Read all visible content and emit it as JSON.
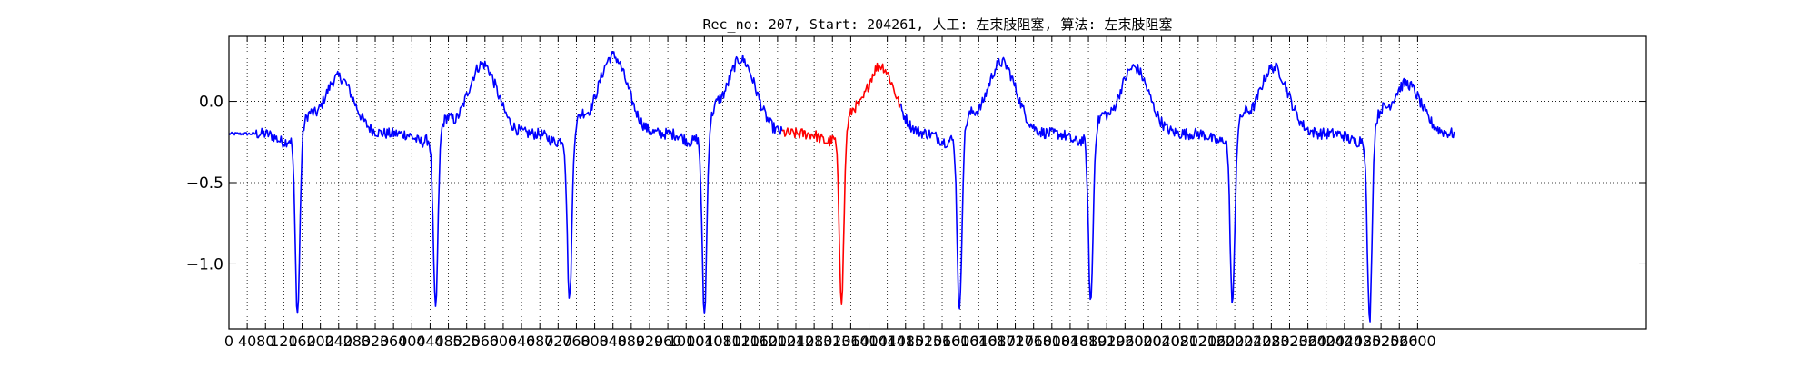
{
  "chart_data": {
    "type": "line",
    "title": "Rec_no: 207, Start: 204261, 人工: 左束肢阻塞, 算法: 左束肢阻塞",
    "xlabel": "",
    "ylabel": "",
    "xlim": [
      0,
      3100
    ],
    "ylim": [
      -1.4,
      0.4
    ],
    "grid": true,
    "x_ticks": [
      0,
      40,
      80,
      120,
      160,
      200,
      240,
      280,
      320,
      360,
      400,
      440,
      480,
      520,
      560,
      600,
      640,
      680,
      720,
      760,
      800,
      840,
      880,
      920,
      960,
      1000,
      1040,
      1080,
      1120,
      1160,
      1200,
      1240,
      1280,
      1320,
      1360,
      1400,
      1440,
      1480,
      1520,
      1560,
      1600,
      1640,
      1680,
      1720,
      1760,
      1800,
      1840,
      1880,
      1920,
      1960,
      2000,
      2040,
      2080,
      2120,
      2160,
      2200,
      2240,
      2280,
      2320,
      2360,
      2400,
      2440,
      2480,
      2520,
      2560,
      2600
    ],
    "y_ticks": [
      0.0,
      -0.5,
      -1.0
    ],
    "y_tick_labels": [
      "0.0",
      "−0.5",
      "−1.0"
    ],
    "beats": [
      {
        "qrs_x": 150,
        "qrs_min": -1.31,
        "t_peak_x": 240,
        "t_peak_y": 0.15,
        "segment": "normal"
      },
      {
        "qrs_x": 452,
        "qrs_min": -1.28,
        "t_peak_x": 555,
        "t_peak_y": 0.23,
        "segment": "normal"
      },
      {
        "qrs_x": 745,
        "qrs_min": -1.23,
        "t_peak_x": 840,
        "t_peak_y": 0.28,
        "segment": "normal"
      },
      {
        "qrs_x": 1040,
        "qrs_min": -1.33,
        "t_peak_x": 1120,
        "t_peak_y": 0.26,
        "segment": "normal"
      },
      {
        "qrs_x": 1340,
        "qrs_min": -1.23,
        "t_peak_x": 1425,
        "t_peak_y": 0.22,
        "segment": "highlight"
      },
      {
        "qrs_x": 1598,
        "qrs_min": -1.3,
        "t_peak_x": 1690,
        "t_peak_y": 0.24,
        "segment": "normal"
      },
      {
        "qrs_x": 1885,
        "qrs_min": -1.24,
        "t_peak_x": 1980,
        "t_peak_y": 0.21,
        "segment": "normal"
      },
      {
        "qrs_x": 2195,
        "qrs_min": -1.26,
        "t_peak_x": 2285,
        "t_peak_y": 0.21,
        "segment": "normal"
      },
      {
        "qrs_x": 2495,
        "qrs_min": -1.36,
        "t_peak_x": 2575,
        "t_peak_y": 0.11,
        "segment": "normal"
      }
    ],
    "baseline": -0.2,
    "series": [
      {
        "x_start": 0,
        "x_end": 1210,
        "color": "#0000ff"
      },
      {
        "x_start": 1210,
        "x_end": 1470,
        "color": "#ff0000"
      },
      {
        "x_start": 1470,
        "x_end": 2680,
        "color": "#0000ff"
      }
    ]
  }
}
